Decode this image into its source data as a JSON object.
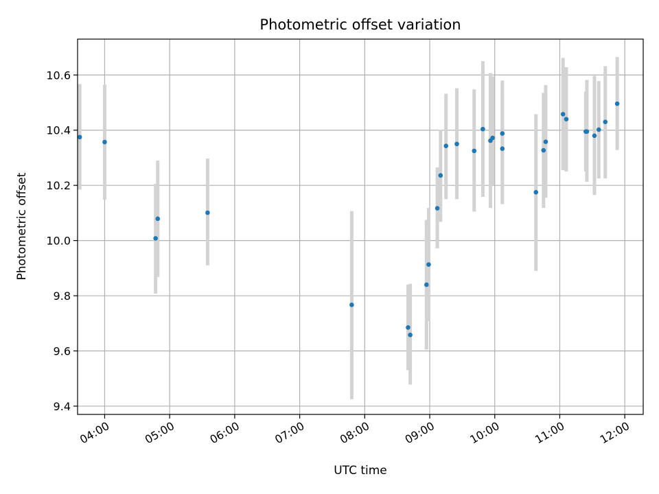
{
  "chart_data": {
    "type": "scatter",
    "title": "Photometric offset variation",
    "xlabel": "UTC time",
    "ylabel": "Photometric offset",
    "x_axis_type": "time",
    "xlim": [
      "03:35",
      "12:17"
    ],
    "ylim": [
      9.37,
      10.73
    ],
    "x_ticks": [
      "04:00",
      "05:00",
      "06:00",
      "07:00",
      "08:00",
      "09:00",
      "10:00",
      "11:00",
      "12:00"
    ],
    "y_ticks": [
      "9.4",
      "9.6",
      "9.8",
      "10.0",
      "10.2",
      "10.4",
      "10.6"
    ],
    "grid": true,
    "point_color": "#1f77b4",
    "errorbar_color": "#d3d3d3",
    "points": [
      {
        "x": "03:37",
        "y": 10.375,
        "low": 10.185,
        "high": 10.567
      },
      {
        "x": "03:60",
        "y": 10.357,
        "low": 10.148,
        "high": 10.565
      },
      {
        "x": "04:47",
        "y": 10.008,
        "low": 9.808,
        "high": 10.205
      },
      {
        "x": "04:49",
        "y": 10.079,
        "low": 9.868,
        "high": 10.29
      },
      {
        "x": "05:35",
        "y": 10.101,
        "low": 9.91,
        "high": 10.297
      },
      {
        "x": "07:48",
        "y": 9.767,
        "low": 9.425,
        "high": 10.107
      },
      {
        "x": "08:40",
        "y": 9.685,
        "low": 9.53,
        "high": 9.84
      },
      {
        "x": "08:42",
        "y": 9.658,
        "low": 9.478,
        "high": 9.843
      },
      {
        "x": "08:57",
        "y": 9.84,
        "low": 9.605,
        "high": 10.075
      },
      {
        "x": "08:59",
        "y": 9.913,
        "low": 9.708,
        "high": 10.118
      },
      {
        "x": "09:07",
        "y": 10.117,
        "low": 9.972,
        "high": 10.265
      },
      {
        "x": "09:10",
        "y": 10.236,
        "low": 10.068,
        "high": 10.402
      },
      {
        "x": "09:15",
        "y": 10.343,
        "low": 10.15,
        "high": 10.532
      },
      {
        "x": "09:25",
        "y": 10.35,
        "low": 10.15,
        "high": 10.552
      },
      {
        "x": "09:41",
        "y": 10.325,
        "low": 10.105,
        "high": 10.548
      },
      {
        "x": "09:49",
        "y": 10.404,
        "low": 10.158,
        "high": 10.65
      },
      {
        "x": "09:56",
        "y": 10.362,
        "low": 10.118,
        "high": 10.607
      },
      {
        "x": "09:58",
        "y": 10.372,
        "low": 10.2,
        "high": 10.595
      },
      {
        "x": "10:07",
        "y": 10.333,
        "low": 10.132,
        "high": 10.535
      },
      {
        "x": "10:07",
        "y": 10.388,
        "low": 10.195,
        "high": 10.58
      },
      {
        "x": "10:38",
        "y": 10.175,
        "low": 9.89,
        "high": 10.458
      },
      {
        "x": "10:45",
        "y": 10.327,
        "low": 10.118,
        "high": 10.535
      },
      {
        "x": "10:47",
        "y": 10.358,
        "low": 10.155,
        "high": 10.563
      },
      {
        "x": "11:03",
        "y": 10.458,
        "low": 10.255,
        "high": 10.662
      },
      {
        "x": "11:06",
        "y": 10.44,
        "low": 10.25,
        "high": 10.628
      },
      {
        "x": "11:24",
        "y": 10.395,
        "low": 10.25,
        "high": 10.54
      },
      {
        "x": "11:25",
        "y": 10.395,
        "low": 10.213,
        "high": 10.582
      },
      {
        "x": "11:32",
        "y": 10.38,
        "low": 10.165,
        "high": 10.597
      },
      {
        "x": "11:36",
        "y": 10.402,
        "low": 10.225,
        "high": 10.578
      },
      {
        "x": "11:42",
        "y": 10.43,
        "low": 10.225,
        "high": 10.632
      },
      {
        "x": "11:53",
        "y": 10.496,
        "low": 10.328,
        "high": 10.665
      }
    ]
  }
}
